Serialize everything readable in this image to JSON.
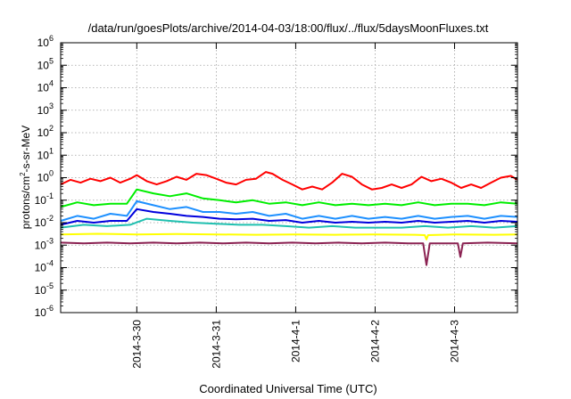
{
  "chart_data": {
    "type": "line",
    "title": "/data/run/goesPlots/archive/2014-04-03/18:00/flux/../flux/5daysMoonFluxes.txt",
    "xlabel": "Coordinated Universal Time (UTC)",
    "ylabel": {
      "base": "protons/cm",
      "sup": "2",
      "rest": "-s-sr-MeV"
    },
    "y_scale": "log",
    "ylim": [
      1e-06,
      1000000.0
    ],
    "xlim": [
      "2014-03-29 01:00",
      "2014-04-03 19:00"
    ],
    "grid": true,
    "legend": "none",
    "y_ticks": [
      {
        "value": 1e-06,
        "mantissa": "10",
        "exp": "-6"
      },
      {
        "value": 1e-05,
        "mantissa": "10",
        "exp": "-5"
      },
      {
        "value": 0.0001,
        "mantissa": "10",
        "exp": "-4"
      },
      {
        "value": 0.001,
        "mantissa": "10",
        "exp": "-3"
      },
      {
        "value": 0.01,
        "mantissa": "10",
        "exp": "-2"
      },
      {
        "value": 0.1,
        "mantissa": "10",
        "exp": "-1"
      },
      {
        "value": 1.0,
        "mantissa": "10",
        "exp": "0"
      },
      {
        "value": 10.0,
        "mantissa": "10",
        "exp": "1"
      },
      {
        "value": 100.0,
        "mantissa": "10",
        "exp": "2"
      },
      {
        "value": 1000.0,
        "mantissa": "10",
        "exp": "3"
      },
      {
        "value": 10000.0,
        "mantissa": "10",
        "exp": "4"
      },
      {
        "value": 100000.0,
        "mantissa": "10",
        "exp": "5"
      },
      {
        "value": 1000000.0,
        "mantissa": "10",
        "exp": "6"
      }
    ],
    "x_ticks": [
      {
        "value": "2014-03-30 00:00",
        "label": "2014-3-30"
      },
      {
        "value": "2014-03-31 00:00",
        "label": "2014-3-31"
      },
      {
        "value": "2014-04-01 00:00",
        "label": "2014-4-1"
      },
      {
        "value": "2014-04-02 00:00",
        "label": "2014-4-2"
      },
      {
        "value": "2014-04-03 00:00",
        "label": "2014-4-3"
      }
    ],
    "series": [
      {
        "color": "#ff0000",
        "points": [
          [
            "2014-03-29 01:00",
            0.5
          ],
          [
            "2014-03-29 04:00",
            0.8
          ],
          [
            "2014-03-29 07:00",
            0.6
          ],
          [
            "2014-03-29 10:00",
            0.9
          ],
          [
            "2014-03-29 13:00",
            0.7
          ],
          [
            "2014-03-29 16:00",
            1.0
          ],
          [
            "2014-03-29 19:00",
            0.6
          ],
          [
            "2014-03-29 22:00",
            0.9
          ],
          [
            "2014-03-30 00:00",
            1.3
          ],
          [
            "2014-03-30 03:00",
            0.7
          ],
          [
            "2014-03-30 06:00",
            0.5
          ],
          [
            "2014-03-30 09:00",
            0.7
          ],
          [
            "2014-03-30 12:00",
            1.1
          ],
          [
            "2014-03-30 15:00",
            0.8
          ],
          [
            "2014-03-30 18:00",
            1.5
          ],
          [
            "2014-03-30 21:00",
            1.3
          ],
          [
            "2014-03-31 00:00",
            0.9
          ],
          [
            "2014-03-31 03:00",
            0.6
          ],
          [
            "2014-03-31 06:00",
            0.5
          ],
          [
            "2014-03-31 09:00",
            0.8
          ],
          [
            "2014-03-31 12:00",
            0.9
          ],
          [
            "2014-03-31 15:00",
            1.8
          ],
          [
            "2014-03-31 17:00",
            1.5
          ],
          [
            "2014-03-31 20:00",
            0.8
          ],
          [
            "2014-03-31 23:00",
            0.5
          ],
          [
            "2014-04-01 02:00",
            0.3
          ],
          [
            "2014-04-01 05:00",
            0.4
          ],
          [
            "2014-04-01 08:00",
            0.3
          ],
          [
            "2014-04-01 11:00",
            0.6
          ],
          [
            "2014-04-01 14:00",
            1.5
          ],
          [
            "2014-04-01 17:00",
            1.1
          ],
          [
            "2014-04-01 20:00",
            0.5
          ],
          [
            "2014-04-01 23:00",
            0.3
          ],
          [
            "2014-04-02 02:00",
            0.35
          ],
          [
            "2014-04-02 05:00",
            0.5
          ],
          [
            "2014-04-02 08:00",
            0.35
          ],
          [
            "2014-04-02 11:00",
            0.5
          ],
          [
            "2014-04-02 14:00",
            1.1
          ],
          [
            "2014-04-02 17:00",
            0.7
          ],
          [
            "2014-04-02 20:00",
            0.9
          ],
          [
            "2014-04-02 23:00",
            0.6
          ],
          [
            "2014-04-03 02:00",
            0.35
          ],
          [
            "2014-04-03 05:00",
            0.5
          ],
          [
            "2014-04-03 08:00",
            0.35
          ],
          [
            "2014-04-03 11:00",
            0.6
          ],
          [
            "2014-04-03 14:00",
            1.0
          ],
          [
            "2014-04-03 17:00",
            1.2
          ],
          [
            "2014-04-03 19:00",
            0.8
          ]
        ]
      },
      {
        "color": "#00ee00",
        "points": [
          [
            "2014-03-29 01:00",
            0.05
          ],
          [
            "2014-03-29 06:00",
            0.08
          ],
          [
            "2014-03-29 11:00",
            0.06
          ],
          [
            "2014-03-29 16:00",
            0.07
          ],
          [
            "2014-03-29 21:00",
            0.07
          ],
          [
            "2014-03-30 00:00",
            0.3
          ],
          [
            "2014-03-30 05:00",
            0.2
          ],
          [
            "2014-03-30 10:00",
            0.15
          ],
          [
            "2014-03-30 15:00",
            0.2
          ],
          [
            "2014-03-30 20:00",
            0.12
          ],
          [
            "2014-03-31 01:00",
            0.1
          ],
          [
            "2014-03-31 06:00",
            0.08
          ],
          [
            "2014-03-31 11:00",
            0.1
          ],
          [
            "2014-03-31 16:00",
            0.07
          ],
          [
            "2014-03-31 21:00",
            0.08
          ],
          [
            "2014-04-01 02:00",
            0.06
          ],
          [
            "2014-04-01 07:00",
            0.08
          ],
          [
            "2014-04-01 12:00",
            0.06
          ],
          [
            "2014-04-01 17:00",
            0.07
          ],
          [
            "2014-04-01 22:00",
            0.06
          ],
          [
            "2014-04-02 03:00",
            0.07
          ],
          [
            "2014-04-02 08:00",
            0.06
          ],
          [
            "2014-04-02 13:00",
            0.08
          ],
          [
            "2014-04-02 18:00",
            0.06
          ],
          [
            "2014-04-02 23:00",
            0.07
          ],
          [
            "2014-04-03 04:00",
            0.07
          ],
          [
            "2014-04-03 09:00",
            0.06
          ],
          [
            "2014-04-03 14:00",
            0.08
          ],
          [
            "2014-04-03 19:00",
            0.07
          ]
        ]
      },
      {
        "color": "#1e90ff",
        "points": [
          [
            "2014-03-29 01:00",
            0.012
          ],
          [
            "2014-03-29 06:00",
            0.02
          ],
          [
            "2014-03-29 11:00",
            0.015
          ],
          [
            "2014-03-29 16:00",
            0.025
          ],
          [
            "2014-03-29 21:00",
            0.02
          ],
          [
            "2014-03-30 00:00",
            0.09
          ],
          [
            "2014-03-30 05:00",
            0.06
          ],
          [
            "2014-03-30 10:00",
            0.04
          ],
          [
            "2014-03-30 15:00",
            0.05
          ],
          [
            "2014-03-30 20:00",
            0.03
          ],
          [
            "2014-03-31 01:00",
            0.03
          ],
          [
            "2014-03-31 06:00",
            0.025
          ],
          [
            "2014-03-31 11:00",
            0.03
          ],
          [
            "2014-03-31 16:00",
            0.02
          ],
          [
            "2014-03-31 21:00",
            0.025
          ],
          [
            "2014-04-01 02:00",
            0.015
          ],
          [
            "2014-04-01 07:00",
            0.02
          ],
          [
            "2014-04-01 12:00",
            0.015
          ],
          [
            "2014-04-01 17:00",
            0.02
          ],
          [
            "2014-04-01 22:00",
            0.015
          ],
          [
            "2014-04-02 03:00",
            0.018
          ],
          [
            "2014-04-02 08:00",
            0.015
          ],
          [
            "2014-04-02 13:00",
            0.02
          ],
          [
            "2014-04-02 18:00",
            0.015
          ],
          [
            "2014-04-02 23:00",
            0.018
          ],
          [
            "2014-04-03 04:00",
            0.02
          ],
          [
            "2014-04-03 09:00",
            0.015
          ],
          [
            "2014-04-03 14:00",
            0.02
          ],
          [
            "2014-04-03 19:00",
            0.018
          ]
        ]
      },
      {
        "color": "#0000dd",
        "points": [
          [
            "2014-03-29 01:00",
            0.008
          ],
          [
            "2014-03-29 06:00",
            0.012
          ],
          [
            "2014-03-29 11:00",
            0.01
          ],
          [
            "2014-03-29 16:00",
            0.012
          ],
          [
            "2014-03-29 21:00",
            0.012
          ],
          [
            "2014-03-30 00:00",
            0.04
          ],
          [
            "2014-03-30 05:00",
            0.03
          ],
          [
            "2014-03-30 10:00",
            0.025
          ],
          [
            "2014-03-30 15:00",
            0.02
          ],
          [
            "2014-03-30 20:00",
            0.018
          ],
          [
            "2014-03-31 01:00",
            0.015
          ],
          [
            "2014-03-31 06:00",
            0.014
          ],
          [
            "2014-03-31 11:00",
            0.015
          ],
          [
            "2014-03-31 16:00",
            0.012
          ],
          [
            "2014-03-31 21:00",
            0.013
          ],
          [
            "2014-04-01 02:00",
            0.01
          ],
          [
            "2014-04-01 07:00",
            0.012
          ],
          [
            "2014-04-01 12:00",
            0.01
          ],
          [
            "2014-04-01 17:00",
            0.011
          ],
          [
            "2014-04-01 22:00",
            0.01
          ],
          [
            "2014-04-02 03:00",
            0.011
          ],
          [
            "2014-04-02 08:00",
            0.01
          ],
          [
            "2014-04-02 13:00",
            0.012
          ],
          [
            "2014-04-02 18:00",
            0.01
          ],
          [
            "2014-04-02 23:00",
            0.011
          ],
          [
            "2014-04-03 04:00",
            0.012
          ],
          [
            "2014-04-03 09:00",
            0.01
          ],
          [
            "2014-04-03 14:00",
            0.012
          ],
          [
            "2014-04-03 19:00",
            0.011
          ]
        ]
      },
      {
        "color": "#20c0b0",
        "points": [
          [
            "2014-03-29 01:00",
            0.006
          ],
          [
            "2014-03-29 08:00",
            0.008
          ],
          [
            "2014-03-29 15:00",
            0.007
          ],
          [
            "2014-03-29 22:00",
            0.008
          ],
          [
            "2014-03-30 03:00",
            0.015
          ],
          [
            "2014-03-30 10:00",
            0.012
          ],
          [
            "2014-03-30 17:00",
            0.01
          ],
          [
            "2014-03-31 00:00",
            0.009
          ],
          [
            "2014-03-31 07:00",
            0.008
          ],
          [
            "2014-03-31 14:00",
            0.008
          ],
          [
            "2014-03-31 21:00",
            0.007
          ],
          [
            "2014-04-01 04:00",
            0.006
          ],
          [
            "2014-04-01 11:00",
            0.007
          ],
          [
            "2014-04-01 18:00",
            0.006
          ],
          [
            "2014-04-02 01:00",
            0.006
          ],
          [
            "2014-04-02 08:00",
            0.006
          ],
          [
            "2014-04-02 15:00",
            0.007
          ],
          [
            "2014-04-02 22:00",
            0.006
          ],
          [
            "2014-04-03 05:00",
            0.007
          ],
          [
            "2014-04-03 12:00",
            0.006
          ],
          [
            "2014-04-03 19:00",
            0.007
          ]
        ]
      },
      {
        "color": "#ffff00",
        "points": [
          [
            "2014-03-29 01:00",
            0.003
          ],
          [
            "2014-03-29 12:00",
            0.0032
          ],
          [
            "2014-03-30 00:00",
            0.003
          ],
          [
            "2014-03-30 12:00",
            0.0031
          ],
          [
            "2014-03-31 00:00",
            0.003
          ],
          [
            "2014-03-31 12:00",
            0.0029
          ],
          [
            "2014-04-01 00:00",
            0.003
          ],
          [
            "2014-04-01 12:00",
            0.0029
          ],
          [
            "2014-04-02 00:00",
            0.003
          ],
          [
            "2014-04-02 12:00",
            0.0029
          ],
          [
            "2014-04-02 15:00",
            0.0028
          ],
          [
            "2014-04-02 15:30",
            0.0018
          ],
          [
            "2014-04-02 16:00",
            0.0028
          ],
          [
            "2014-04-03 00:00",
            0.003
          ],
          [
            "2014-04-03 12:00",
            0.0029
          ],
          [
            "2014-04-03 19:00",
            0.003
          ]
        ]
      },
      {
        "color": "#8b2252",
        "points": [
          [
            "2014-03-29 01:00",
            0.0013
          ],
          [
            "2014-03-29 08:00",
            0.0012
          ],
          [
            "2014-03-29 15:00",
            0.0013
          ],
          [
            "2014-03-29 22:00",
            0.0012
          ],
          [
            "2014-03-30 05:00",
            0.0013
          ],
          [
            "2014-03-30 12:00",
            0.0012
          ],
          [
            "2014-03-30 19:00",
            0.0013
          ],
          [
            "2014-03-31 02:00",
            0.0012
          ],
          [
            "2014-03-31 09:00",
            0.0013
          ],
          [
            "2014-03-31 16:00",
            0.0012
          ],
          [
            "2014-03-31 23:00",
            0.0013
          ],
          [
            "2014-04-01 06:00",
            0.0012
          ],
          [
            "2014-04-01 13:00",
            0.0013
          ],
          [
            "2014-04-01 20:00",
            0.0012
          ],
          [
            "2014-04-02 03:00",
            0.0013
          ],
          [
            "2014-04-02 10:00",
            0.0012
          ],
          [
            "2014-04-02 14:30",
            0.0012
          ],
          [
            "2014-04-02 15:30",
            0.00013
          ],
          [
            "2014-04-02 16:30",
            0.0012
          ],
          [
            "2014-04-03 01:00",
            0.0012
          ],
          [
            "2014-04-03 01:45",
            0.0003
          ],
          [
            "2014-04-03 02:30",
            0.0012
          ],
          [
            "2014-04-03 10:00",
            0.0013
          ],
          [
            "2014-04-03 19:00",
            0.0012
          ]
        ]
      }
    ]
  }
}
